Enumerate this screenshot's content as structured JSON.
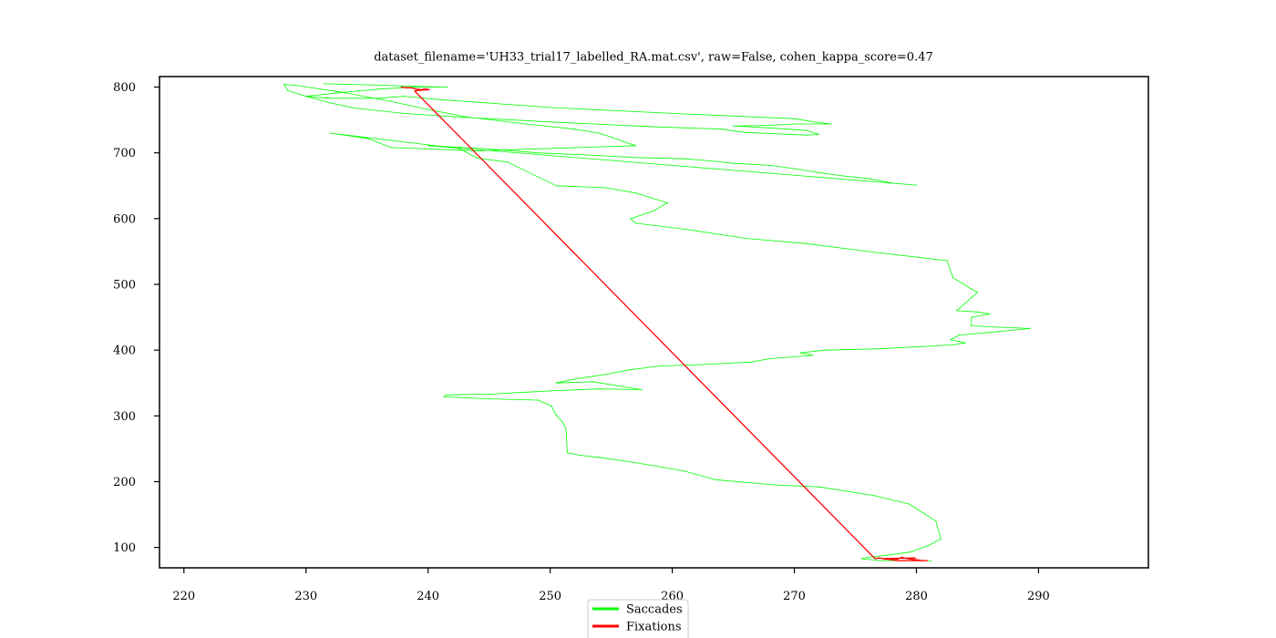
{
  "chart_data": {
    "type": "line",
    "title": "dataset_filename='UH33_trial17_labelled_RA.mat.csv', raw=False, cohen_kappa_score=0.47",
    "xlabel": "",
    "ylabel": "",
    "xlim": [
      218,
      299
    ],
    "ylim": [
      69,
      816
    ],
    "xticks": [
      220,
      230,
      240,
      250,
      260,
      270,
      280,
      290
    ],
    "yticks": [
      100,
      200,
      300,
      400,
      500,
      600,
      700,
      800
    ],
    "grid": false,
    "legend_position": "bottom-center",
    "series": [
      {
        "name": "Saccades",
        "color": "#00ff00",
        "points": [
          [
            231.5,
            805
          ],
          [
            236,
            803
          ],
          [
            239,
            801
          ],
          [
            241.6,
            800
          ],
          [
            239,
            800
          ],
          [
            236,
            797
          ],
          [
            233,
            792
          ],
          [
            230,
            786
          ],
          [
            232,
            783
          ],
          [
            236,
            783
          ],
          [
            238,
            786
          ],
          [
            241,
            781
          ],
          [
            250,
            769
          ],
          [
            260,
            760
          ],
          [
            270,
            752
          ],
          [
            272,
            746
          ],
          [
            273,
            744
          ],
          [
            270,
            744
          ],
          [
            268,
            742
          ],
          [
            266,
            741
          ],
          [
            265,
            741
          ],
          [
            268,
            738
          ],
          [
            271,
            734
          ],
          [
            272,
            728
          ],
          [
            271,
            727
          ],
          [
            266,
            731
          ],
          [
            264,
            736
          ],
          [
            258,
            740
          ],
          [
            250,
            747
          ],
          [
            242,
            755
          ],
          [
            238,
            760
          ],
          [
            234,
            768
          ],
          [
            232,
            776
          ],
          [
            230,
            786
          ],
          [
            228.5,
            795
          ],
          [
            228.2,
            804
          ],
          [
            229,
            803
          ],
          [
            233,
            792
          ],
          [
            237,
            778
          ],
          [
            240,
            766
          ],
          [
            243,
            755
          ],
          [
            248,
            744
          ],
          [
            252,
            736
          ],
          [
            254,
            730
          ],
          [
            255,
            724
          ],
          [
            256,
            717
          ],
          [
            257,
            711
          ],
          [
            244,
            703
          ],
          [
            237,
            708
          ],
          [
            235,
            722
          ],
          [
            232,
            730
          ],
          [
            241,
            710
          ],
          [
            245,
            706
          ],
          [
            249,
            700
          ],
          [
            254,
            696
          ],
          [
            257,
            693
          ],
          [
            261,
            691
          ],
          [
            263,
            688
          ],
          [
            265,
            684
          ],
          [
            268,
            681
          ],
          [
            270,
            676
          ],
          [
            272,
            670
          ],
          [
            274,
            665
          ],
          [
            276,
            661
          ],
          [
            277,
            658
          ],
          [
            278,
            654
          ],
          [
            280,
            651
          ],
          [
            240,
            711
          ],
          [
            242.5,
            707
          ],
          [
            244,
            692
          ],
          [
            246.5,
            686
          ],
          [
            250.5,
            650
          ],
          [
            254.5,
            647
          ],
          [
            257,
            639
          ],
          [
            259.6,
            624
          ],
          [
            258.5,
            612
          ],
          [
            256.6,
            600
          ],
          [
            257,
            593
          ],
          [
            261,
            584
          ],
          [
            266,
            570
          ],
          [
            271,
            562
          ],
          [
            276,
            550
          ],
          [
            282.5,
            536
          ],
          [
            283,
            510
          ],
          [
            284.5,
            493
          ],
          [
            285,
            488
          ],
          [
            283.3,
            460
          ],
          [
            285,
            458
          ],
          [
            286,
            455
          ],
          [
            284.5,
            450
          ],
          [
            284.5,
            437
          ],
          [
            286.5,
            435
          ],
          [
            289.3,
            433
          ],
          [
            286,
            427
          ],
          [
            283.5,
            423
          ],
          [
            282.8,
            416
          ],
          [
            284,
            411
          ],
          [
            283,
            408
          ],
          [
            277,
            402
          ],
          [
            272.5,
            400
          ],
          [
            270.5,
            396
          ],
          [
            271.5,
            392
          ],
          [
            268,
            387
          ],
          [
            266.5,
            382
          ],
          [
            262.5,
            378
          ],
          [
            259,
            376
          ],
          [
            256.5,
            370
          ],
          [
            254.5,
            363
          ],
          [
            252,
            356
          ],
          [
            250.5,
            350
          ],
          [
            253.5,
            352
          ],
          [
            257.5,
            340
          ],
          [
            254,
            341
          ],
          [
            250,
            338
          ],
          [
            248,
            336
          ],
          [
            245,
            333
          ],
          [
            241.5,
            332
          ],
          [
            241.3,
            329
          ],
          [
            245,
            326
          ],
          [
            249,
            324
          ],
          [
            250.1,
            315
          ],
          [
            250.5,
            301
          ],
          [
            251,
            291
          ],
          [
            251.3,
            280
          ],
          [
            251.4,
            244
          ],
          [
            252.5,
            240
          ],
          [
            254,
            237
          ],
          [
            257,
            229
          ],
          [
            261,
            216
          ],
          [
            263.5,
            203
          ],
          [
            268.5,
            195
          ],
          [
            272,
            192
          ],
          [
            276.5,
            179
          ],
          [
            279.4,
            166
          ],
          [
            281.6,
            140
          ],
          [
            282,
            113
          ],
          [
            281,
            103
          ],
          [
            279.5,
            93
          ],
          [
            277.5,
            88
          ],
          [
            276,
            85
          ],
          [
            275.5,
            83
          ],
          [
            277,
            80
          ],
          [
            279,
            80
          ],
          [
            281.2,
            80
          ]
        ]
      },
      {
        "name": "Fixations",
        "color": "#ff0000",
        "points": [
          [
            237.8,
            800
          ],
          [
            238.2,
            799
          ],
          [
            238.6,
            799
          ],
          [
            239.0,
            797
          ],
          [
            239.4,
            796
          ],
          [
            239.8,
            797
          ],
          [
            240.1,
            796
          ],
          [
            239.2,
            795
          ],
          [
            238.9,
            794
          ],
          [
            276.6,
            83
          ],
          [
            277.0,
            84
          ],
          [
            277.5,
            82
          ],
          [
            278.0,
            83
          ],
          [
            278.3,
            81
          ],
          [
            278.8,
            85
          ],
          [
            279.2,
            83
          ],
          [
            279.6,
            82
          ],
          [
            280.1,
            81
          ],
          [
            280.5,
            80
          ],
          [
            280.9,
            80
          ],
          [
            278.5,
            80
          ],
          [
            277.2,
            83
          ],
          [
            279.9,
            84
          ]
        ]
      }
    ]
  }
}
